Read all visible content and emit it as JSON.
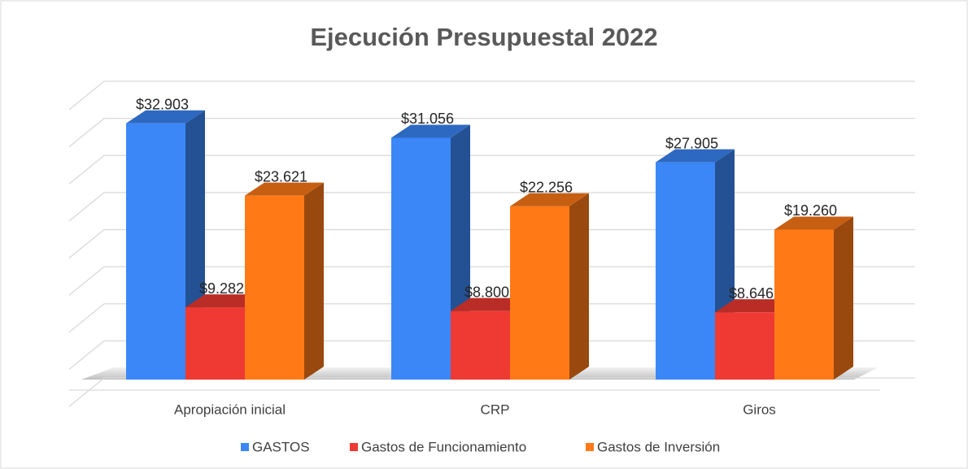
{
  "chart_data": {
    "type": "bar3d",
    "title": "Ejecución Presupuestal 2022",
    "categories": [
      "Apropiación inicial",
      "CRP",
      "Giros"
    ],
    "series": [
      {
        "name": "GASTOS",
        "color": "#3b87f7",
        "values": [
          32903,
          31056,
          27905
        ],
        "value_labels": [
          "$32.903",
          "$31.056",
          "$27.905"
        ]
      },
      {
        "name": "Gastos de Funcionamiento",
        "color": "#ee3a32",
        "values": [
          9282,
          8800,
          8646
        ],
        "value_labels": [
          "$9.282",
          "$8.800",
          "$8.646"
        ]
      },
      {
        "name": "Gastos de Inversión",
        "color": "#ff7a17",
        "values": [
          23621,
          22256,
          19260
        ],
        "value_labels": [
          "$23.621",
          "$22.256",
          "$19.260"
        ]
      }
    ],
    "ylim": [
      0,
      40000
    ],
    "yticks": [
      0,
      5000,
      10000,
      15000,
      20000,
      25000,
      30000,
      35000,
      40000
    ],
    "grid": true,
    "legend": "bottom"
  }
}
